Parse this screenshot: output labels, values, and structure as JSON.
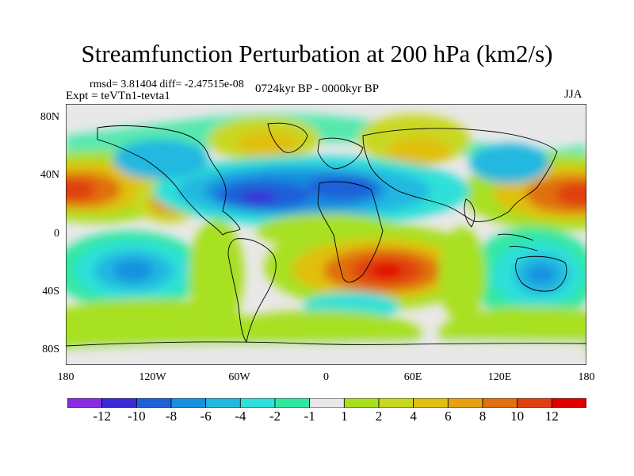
{
  "title": "Streamfunction Perturbation at 200 hPa (km2/s)",
  "stats": "rmsd= 3.81404 diff= -2.47515e-08",
  "experiment": "Expt = teVTn1-tevta1",
  "period": "0724kyr BP - 0000kyr BP",
  "season": "JJA",
  "map": {
    "lon_range": [
      -180,
      180
    ],
    "lat_range": [
      -90,
      90
    ],
    "lat_ticks": [
      {
        "value": 80,
        "label": "80N"
      },
      {
        "value": 40,
        "label": "40N"
      },
      {
        "value": 0,
        "label": "0"
      },
      {
        "value": -40,
        "label": "40S"
      },
      {
        "value": -80,
        "label": "80S"
      }
    ],
    "lon_ticks": [
      {
        "value": -180,
        "label": "180"
      },
      {
        "value": -120,
        "label": "120W"
      },
      {
        "value": -60,
        "label": "60W"
      },
      {
        "value": 0,
        "label": "0"
      },
      {
        "value": 60,
        "label": "60E"
      },
      {
        "value": 120,
        "label": "120E"
      },
      {
        "value": 180,
        "label": "180"
      }
    ],
    "background_color": "#e8e8e8",
    "features": [
      {
        "name": "atlantic-europe-low",
        "lon": -50,
        "lat": 32,
        "value": -11
      },
      {
        "name": "north-africa-low",
        "lon": 10,
        "lat": 30,
        "value": -9
      },
      {
        "name": "north-pacific-east-high",
        "lon": -175,
        "lat": 30,
        "value": 10
      },
      {
        "name": "north-pacific-west-high",
        "lon": 170,
        "lat": 30,
        "value": 10
      },
      {
        "name": "southern-africa-high",
        "lon": 40,
        "lat": -28,
        "value": 10
      },
      {
        "name": "south-pacific-low",
        "lon": -130,
        "lat": -25,
        "value": -7
      },
      {
        "name": "south-indian-low",
        "lon": 120,
        "lat": -30,
        "value": -6
      }
    ]
  },
  "colorbar": {
    "colors": [
      "#8a2be2",
      "#3a2bd6",
      "#1e60d8",
      "#1890e0",
      "#22b8e0",
      "#2ee0d8",
      "#30e8a0",
      "#e8e8e8",
      "#a8e020",
      "#c8d820",
      "#e0c010",
      "#e8a010",
      "#e07010",
      "#e04010",
      "#e00000"
    ],
    "labels": [
      "-12",
      "-10",
      "-8",
      "-6",
      "-4",
      "-2",
      "-1",
      "1",
      "2",
      "4",
      "6",
      "8",
      "10",
      "12"
    ]
  }
}
